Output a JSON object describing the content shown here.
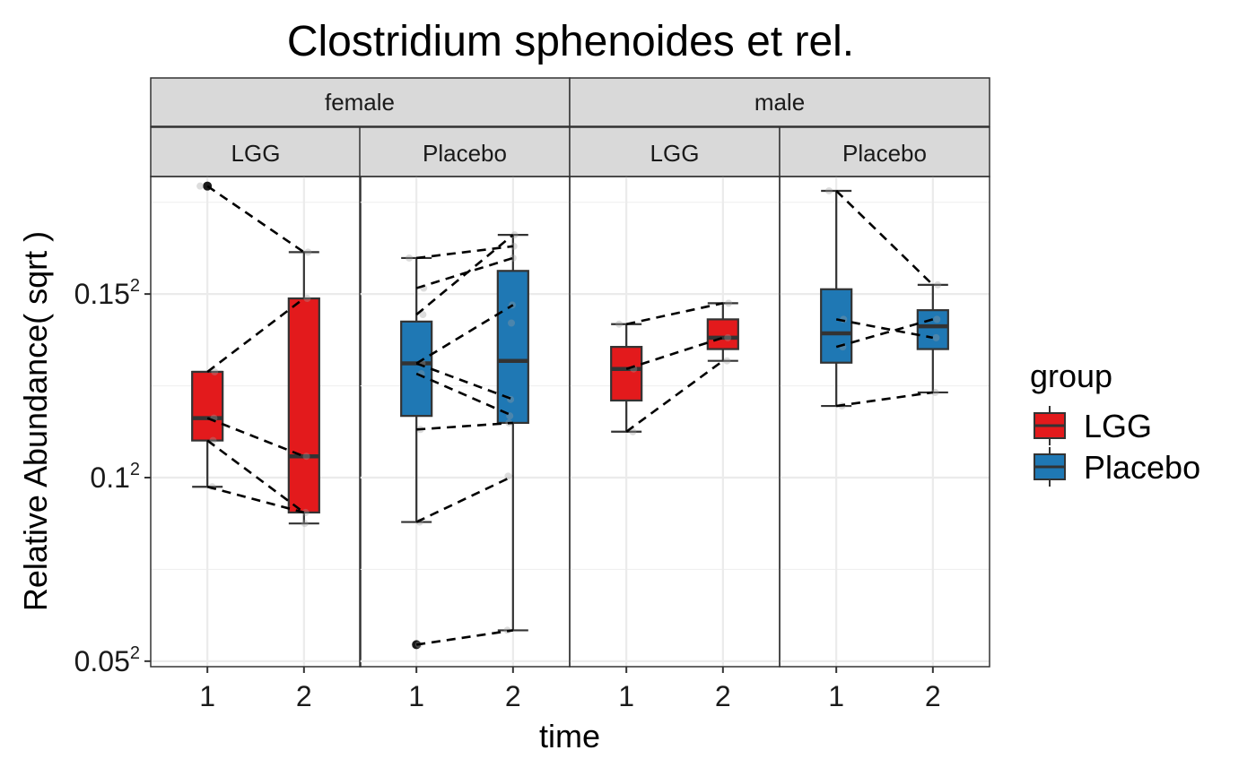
{
  "chart_data": {
    "type": "boxplot",
    "title": "Clostridium sphenoides et rel.",
    "xlabel": "time",
    "ylabel": "Relative Abundance( sqrt )",
    "y_scale": "sqrt",
    "y_data_range_sqrt": [
      0.0485,
      0.182
    ],
    "y_ticks": [
      {
        "base": "0.05",
        "exp": "2",
        "sqrt_value": 0.05
      },
      {
        "base": "0.1",
        "exp": "2",
        "sqrt_value": 0.1
      },
      {
        "base": "0.15",
        "exp": "2",
        "sqrt_value": 0.15
      }
    ],
    "x_ticks": [
      "1",
      "2"
    ],
    "facet_rows_label": [
      "female",
      "male"
    ],
    "legend": {
      "title": "group",
      "entries": [
        {
          "label": "LGG",
          "color": "#E31A1C"
        },
        {
          "label": "Placebo",
          "color": "#1F78B4"
        }
      ]
    },
    "panels": [
      {
        "sex": "female",
        "group": "LGG",
        "color": "#E31A1C",
        "boxes": [
          {
            "time": "1",
            "q1": 0.1101,
            "median": 0.1162,
            "q3": 0.1288,
            "whisker_low": 0.0975,
            "whisker_high": 0.1288,
            "outliers": [
              0.1794
            ]
          },
          {
            "time": "2",
            "q1": 0.0905,
            "median": 0.1058,
            "q3": 0.1488,
            "whisker_low": 0.0875,
            "whisker_high": 0.1614,
            "outliers": []
          }
        ],
        "points": [
          {
            "time": "1",
            "value": 0.1794
          },
          {
            "time": "1",
            "value": 0.1288
          },
          {
            "time": "1",
            "value": 0.1162
          },
          {
            "time": "1",
            "value": 0.1101
          },
          {
            "time": "1",
            "value": 0.0975
          },
          {
            "time": "2",
            "value": 0.1614
          },
          {
            "time": "2",
            "value": 0.1488
          },
          {
            "time": "2",
            "value": 0.1058
          },
          {
            "time": "2",
            "value": 0.0905
          },
          {
            "time": "2",
            "value": 0.0875
          }
        ],
        "pairs": [
          [
            0.1794,
            0.1614
          ],
          [
            0.1288,
            0.1488
          ],
          [
            0.1162,
            0.1058
          ],
          [
            0.1101,
            0.0905
          ],
          [
            0.0975,
            0.0905
          ]
        ]
      },
      {
        "sex": "female",
        "group": "Placebo",
        "color": "#1F78B4",
        "boxes": [
          {
            "time": "1",
            "q1": 0.1168,
            "median": 0.1311,
            "q3": 0.1425,
            "whisker_low": 0.0879,
            "whisker_high": 0.1598,
            "outliers": [
              0.0545
            ]
          },
          {
            "time": "2",
            "q1": 0.1149,
            "median": 0.1318,
            "q3": 0.1563,
            "whisker_low": 0.0584,
            "whisker_high": 0.1661,
            "outliers": []
          }
        ],
        "points": [
          {
            "time": "1",
            "value": 0.1598
          },
          {
            "time": "1",
            "value": 0.1516
          },
          {
            "time": "1",
            "value": 0.1444
          },
          {
            "time": "1",
            "value": 0.1311
          },
          {
            "time": "1",
            "value": 0.1283
          },
          {
            "time": "1",
            "value": 0.1131
          },
          {
            "time": "1",
            "value": 0.0879
          },
          {
            "time": "1",
            "value": 0.0545
          },
          {
            "time": "2",
            "value": 0.1661
          },
          {
            "time": "2",
            "value": 0.163
          },
          {
            "time": "2",
            "value": 0.1598
          },
          {
            "time": "2",
            "value": 0.147
          },
          {
            "time": "2",
            "value": 0.1421
          },
          {
            "time": "2",
            "value": 0.1213
          },
          {
            "time": "2",
            "value": 0.1168
          },
          {
            "time": "2",
            "value": 0.1149
          },
          {
            "time": "2",
            "value": 0.1004
          },
          {
            "time": "2",
            "value": 0.0584
          }
        ],
        "pairs": [
          [
            0.1598,
            0.163
          ],
          [
            0.1516,
            0.1598
          ],
          [
            0.1444,
            0.1661
          ],
          [
            0.1311,
            0.147
          ],
          [
            0.1311,
            0.1213
          ],
          [
            0.1283,
            0.1168
          ],
          [
            0.1131,
            0.1149
          ],
          [
            0.0879,
            0.1004
          ],
          [
            0.0545,
            0.0584
          ]
        ]
      },
      {
        "sex": "male",
        "group": "LGG",
        "color": "#E31A1C",
        "boxes": [
          {
            "time": "1",
            "q1": 0.121,
            "median": 0.1296,
            "q3": 0.1356,
            "whisker_low": 0.1125,
            "whisker_high": 0.1418,
            "outliers": []
          },
          {
            "time": "2",
            "q1": 0.135,
            "median": 0.1381,
            "q3": 0.1431,
            "whisker_low": 0.1318,
            "whisker_high": 0.1475,
            "outliers": []
          }
        ],
        "points": [
          {
            "time": "1",
            "value": 0.1418
          },
          {
            "time": "1",
            "value": 0.1296
          },
          {
            "time": "1",
            "value": 0.1125
          },
          {
            "time": "2",
            "value": 0.1475
          },
          {
            "time": "2",
            "value": 0.1381
          },
          {
            "time": "2",
            "value": 0.1318
          }
        ],
        "pairs": [
          [
            0.1418,
            0.1475
          ],
          [
            0.1296,
            0.1381
          ],
          [
            0.1125,
            0.1318
          ]
        ]
      },
      {
        "sex": "male",
        "group": "Placebo",
        "color": "#1F78B4",
        "boxes": [
          {
            "time": "1",
            "q1": 0.1313,
            "median": 0.1393,
            "q3": 0.1513,
            "whisker_low": 0.1195,
            "whisker_high": 0.1781,
            "outliers": []
          },
          {
            "time": "2",
            "q1": 0.135,
            "median": 0.1412,
            "q3": 0.1456,
            "whisker_low": 0.1232,
            "whisker_high": 0.1525,
            "outliers": []
          }
        ],
        "points": [
          {
            "time": "1",
            "value": 0.1781
          },
          {
            "time": "1",
            "value": 0.1431
          },
          {
            "time": "1",
            "value": 0.1356
          },
          {
            "time": "1",
            "value": 0.1195
          },
          {
            "time": "2",
            "value": 0.1525
          },
          {
            "time": "2",
            "value": 0.1431
          },
          {
            "time": "2",
            "value": 0.1381
          },
          {
            "time": "2",
            "value": 0.1232
          }
        ],
        "pairs": [
          [
            0.1781,
            0.1525
          ],
          [
            0.1431,
            0.1381
          ],
          [
            0.1356,
            0.1431
          ],
          [
            0.1195,
            0.1232
          ]
        ]
      }
    ]
  }
}
